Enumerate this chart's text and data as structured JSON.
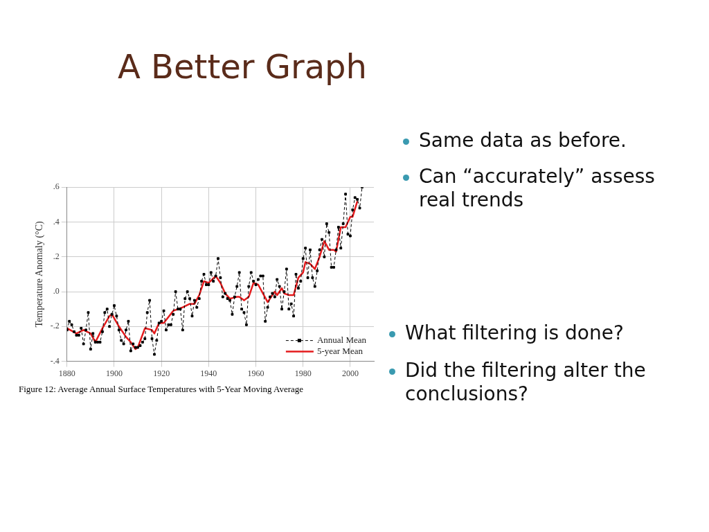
{
  "chart_data": {
    "type": "line",
    "title": "A Better Graph",
    "ylabel": "Temperature Anomaly (°C)",
    "annotations": [
      "Figure 12: Average Annual Surface Temperatures with 5-Year Moving Average",
      "Same data as before.",
      "Can “accurately” assess real trends",
      "What filtering is done?",
      "Did the filtering alter the conclusions?"
    ],
    "xlim": [
      1880,
      2010
    ],
    "xticks": [
      1880,
      1900,
      1920,
      1940,
      1960,
      1980,
      2000
    ],
    "ylim": [
      -0.4,
      0.6
    ],
    "yticks": [
      {
        "value": -0.4,
        "label": "-.4"
      },
      {
        "value": -0.2,
        "label": "-.2"
      },
      {
        "value": 0,
        "label": ".0"
      },
      {
        "value": 0.2,
        "label": ".2"
      },
      {
        "value": 0.4,
        "label": ".4"
      },
      {
        "value": 0.6,
        "label": ".6"
      }
    ],
    "grid": true,
    "legend": "bottom right",
    "series": [
      {
        "name": "Annual Mean",
        "color": "#000000",
        "marker": "square",
        "line_style": "dashed",
        "x": [
          1880,
          1881,
          1882,
          1883,
          1884,
          1885,
          1886,
          1887,
          1888,
          1889,
          1890,
          1891,
          1892,
          1893,
          1894,
          1895,
          1896,
          1897,
          1898,
          1899,
          1900,
          1901,
          1902,
          1903,
          1904,
          1905,
          1906,
          1907,
          1908,
          1909,
          1910,
          1911,
          1912,
          1913,
          1914,
          1915,
          1916,
          1917,
          1918,
          1919,
          1920,
          1921,
          1922,
          1923,
          1924,
          1925,
          1926,
          1927,
          1928,
          1929,
          1930,
          1931,
          1932,
          1933,
          1934,
          1935,
          1936,
          1937,
          1938,
          1939,
          1940,
          1941,
          1942,
          1943,
          1944,
          1945,
          1946,
          1947,
          1948,
          1949,
          1950,
          1951,
          1952,
          1953,
          1954,
          1955,
          1956,
          1957,
          1958,
          1959,
          1960,
          1961,
          1962,
          1963,
          1964,
          1965,
          1966,
          1967,
          1968,
          1969,
          1970,
          1971,
          1972,
          1973,
          1974,
          1975,
          1976,
          1977,
          1978,
          1979,
          1980,
          1981,
          1982,
          1983,
          1984,
          1985,
          1986,
          1987,
          1988,
          1989,
          1990,
          1991,
          1992,
          1993,
          1994,
          1995,
          1996,
          1997,
          1998,
          1999,
          2000,
          2001,
          2002,
          2003,
          2004,
          2005
        ],
        "values": [
          -0.22,
          -0.17,
          -0.19,
          -0.23,
          -0.25,
          -0.25,
          -0.21,
          -0.3,
          -0.22,
          -0.12,
          -0.33,
          -0.24,
          -0.29,
          -0.29,
          -0.29,
          -0.23,
          -0.12,
          -0.1,
          -0.2,
          -0.13,
          -0.08,
          -0.14,
          -0.22,
          -0.28,
          -0.3,
          -0.22,
          -0.17,
          -0.34,
          -0.3,
          -0.32,
          -0.32,
          -0.31,
          -0.29,
          -0.27,
          -0.12,
          -0.05,
          -0.27,
          -0.36,
          -0.28,
          -0.18,
          -0.17,
          -0.11,
          -0.22,
          -0.19,
          -0.19,
          -0.13,
          0,
          -0.1,
          -0.1,
          -0.22,
          -0.04,
          0,
          -0.04,
          -0.14,
          -0.05,
          -0.09,
          -0.04,
          0.06,
          0.1,
          0.04,
          0.04,
          0.11,
          0.06,
          0.09,
          0.19,
          0.08,
          -0.03,
          -0.01,
          -0.04,
          -0.05,
          -0.13,
          -0.03,
          0.03,
          0.11,
          -0.1,
          -0.12,
          -0.19,
          0.03,
          0.11,
          0.06,
          0.04,
          0.07,
          0.09,
          0.09,
          -0.17,
          -0.09,
          -0.03,
          -0.01,
          -0.03,
          0.07,
          0.03,
          -0.1,
          0,
          0.13,
          -0.1,
          -0.07,
          -0.14,
          0.1,
          0.02,
          0.06,
          0.19,
          0.25,
          0.08,
          0.24,
          0.08,
          0.03,
          0.12,
          0.24,
          0.3,
          0.2,
          0.39,
          0.34,
          0.14,
          0.14,
          0.24,
          0.37,
          0.25,
          0.39,
          0.56,
          0.33,
          0.32,
          0.47,
          0.54,
          0.53,
          0.48,
          0.6
        ]
      },
      {
        "name": "5-year Mean",
        "color": "#e41a1c",
        "marker": "none",
        "line_style": "solid",
        "x": [
          1880,
          1884,
          1887,
          1890,
          1892,
          1895,
          1898,
          1899,
          1902,
          1905,
          1907,
          1909,
          1910,
          1913,
          1916,
          1917,
          1919,
          1921,
          1925,
          1929,
          1932,
          1934,
          1936,
          1938,
          1940,
          1943,
          1945,
          1947,
          1949,
          1952,
          1953,
          1955,
          1957,
          1959,
          1961,
          1963,
          1965,
          1968,
          1969,
          1971,
          1972,
          1974,
          1976,
          1978,
          1980,
          1981,
          1983,
          1985,
          1987,
          1989,
          1991,
          1993,
          1994,
          1996,
          1998,
          2000,
          2001,
          2003
        ],
        "values": [
          -0.21,
          -0.24,
          -0.22,
          -0.24,
          -0.29,
          -0.21,
          -0.14,
          -0.13,
          -0.2,
          -0.26,
          -0.29,
          -0.33,
          -0.32,
          -0.21,
          -0.22,
          -0.24,
          -0.18,
          -0.18,
          -0.11,
          -0.09,
          -0.07,
          -0.07,
          -0.02,
          0.06,
          0.05,
          0.09,
          0.05,
          -0.01,
          -0.04,
          -0.03,
          -0.03,
          -0.05,
          -0.03,
          0.05,
          0.04,
          -0.01,
          -0.06,
          0,
          -0.02,
          0.02,
          -0.01,
          -0.02,
          -0.02,
          0.08,
          0.11,
          0.17,
          0.16,
          0.13,
          0.2,
          0.29,
          0.24,
          0.24,
          0.23,
          0.37,
          0.37,
          0.43,
          0.43,
          0.52
        ]
      }
    ]
  }
}
